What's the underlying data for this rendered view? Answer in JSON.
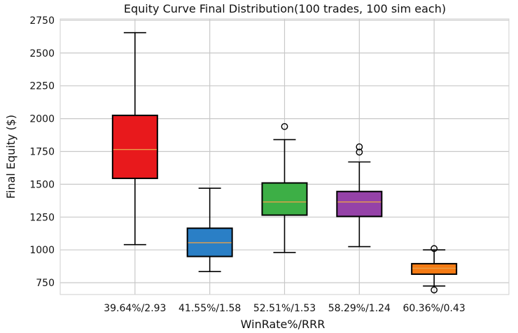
{
  "chart_data": {
    "type": "boxplot",
    "title": "Equity Curve Final Distribution(100 trades, 100 sim each)",
    "xlabel": "WinRate%/RRR",
    "ylabel": "Final Equity ($)",
    "ylim": [
      660,
      2760
    ],
    "yticks": [
      750,
      1000,
      1250,
      1500,
      1750,
      2000,
      2250,
      2500,
      2750
    ],
    "ytick_labels": [
      "750",
      "1000",
      "1250",
      "1500",
      "1750",
      "2000",
      "2250",
      "2500",
      "2750"
    ],
    "grid": true,
    "categories": [
      "39.64%/2.93",
      "41.55%/1.58",
      "52.51%/1.53",
      "58.29%/1.24",
      "60.36%/0.43"
    ],
    "series": [
      {
        "name": "39.64%/2.93",
        "color": "#e8191c",
        "whisker_low": 1040,
        "q1": 1545,
        "median": 1765,
        "q3": 2025,
        "whisker_high": 2655,
        "outliers": []
      },
      {
        "name": "41.55%/1.58",
        "color": "#2a7fc6",
        "whisker_low": 835,
        "q1": 950,
        "median": 1055,
        "q3": 1165,
        "whisker_high": 1470,
        "outliers": []
      },
      {
        "name": "52.51%/1.53",
        "color": "#3daf46",
        "whisker_low": 980,
        "q1": 1265,
        "median": 1365,
        "q3": 1510,
        "whisker_high": 1840,
        "outliers": [
          1940
        ]
      },
      {
        "name": "58.29%/1.24",
        "color": "#9542a8",
        "whisker_low": 1025,
        "q1": 1255,
        "median": 1365,
        "q3": 1445,
        "whisker_high": 1670,
        "outliers": [
          1745,
          1785
        ]
      },
      {
        "name": "60.36%/0.43",
        "color": "#f57b14",
        "whisker_low": 725,
        "q1": 815,
        "median": 860,
        "q3": 895,
        "whisker_high": 1000,
        "outliers": [
          695,
          1010
        ]
      }
    ]
  }
}
